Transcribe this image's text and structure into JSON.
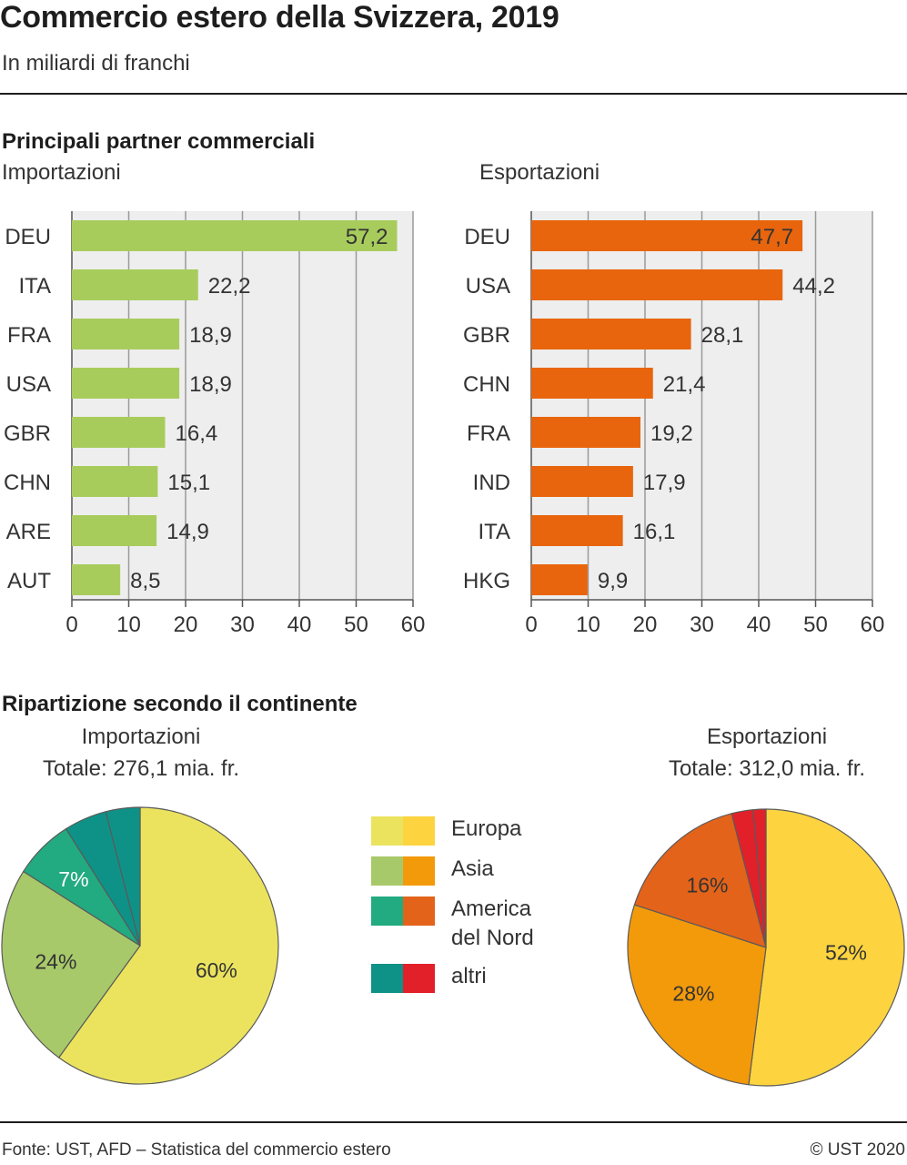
{
  "title": "Commercio estero della Svizzera, 2019",
  "subtitle": "In miliardi di franchi",
  "section1_title": "Principali partner commerciali",
  "section2_title": "Ripartizione secondo il continente",
  "footer": {
    "source": "Fonte: UST, AFD – Statistica del commercio estero",
    "copyright": "© UST 2020"
  },
  "legend": [
    {
      "label": "Europa",
      "colors": [
        "#ebe35e",
        "#fdd43f"
      ]
    },
    {
      "label": "Asia",
      "colors": [
        "#a8c96a",
        "#f39a0b"
      ]
    },
    {
      "label": "America\ndel Nord",
      "colors": [
        "#22aa80",
        "#e3631a"
      ]
    },
    {
      "label": "altri",
      "colors": [
        "#0e9287",
        "#e2202a"
      ]
    }
  ],
  "chart_data": [
    {
      "type": "bar",
      "orientation": "horizontal",
      "title": "Importazioni",
      "categories": [
        "DEU",
        "ITA",
        "FRA",
        "USA",
        "GBR",
        "CHN",
        "ARE",
        "AUT"
      ],
      "values": [
        57.2,
        22.2,
        18.9,
        18.9,
        16.4,
        15.1,
        14.9,
        8.5
      ],
      "value_labels": [
        "57,2",
        "22,2",
        "18,9",
        "18,9",
        "16,4",
        "15,1",
        "14,9",
        "8,5"
      ],
      "xlim": [
        0,
        60
      ],
      "xticks": [
        0,
        10,
        20,
        30,
        40,
        50,
        60
      ],
      "grid": true,
      "color": "#a8cc5c"
    },
    {
      "type": "bar",
      "orientation": "horizontal",
      "title": "Esportazioni",
      "categories": [
        "DEU",
        "USA",
        "GBR",
        "CHN",
        "FRA",
        "IND",
        "ITA",
        "HKG"
      ],
      "values": [
        47.7,
        44.2,
        28.1,
        21.4,
        19.2,
        17.9,
        16.1,
        9.9
      ],
      "value_labels": [
        "47,7",
        "44,2",
        "28,1",
        "21,4",
        "19,2",
        "17,9",
        "16,1",
        "9,9"
      ],
      "xlim": [
        0,
        60
      ],
      "xticks": [
        0,
        10,
        20,
        30,
        40,
        50,
        60
      ],
      "grid": true,
      "color": "#e8650d"
    },
    {
      "type": "pie",
      "title": "Importazioni",
      "subtitle": "Totale: 276,1 mia. fr.",
      "slices": [
        {
          "label": "Europa",
          "value": 60,
          "text": "60%",
          "color": "#ebe35e"
        },
        {
          "label": "Asia",
          "value": 24,
          "text": "24%",
          "color": "#a8c96a"
        },
        {
          "label": "America del Nord",
          "value": 7,
          "text": "7%",
          "color": "#22aa80"
        },
        {
          "label": "altri",
          "value": 5,
          "text": "",
          "color": "#0e9287"
        },
        {
          "label": "altri",
          "value": 4,
          "text": "",
          "color": "#0e9287"
        }
      ]
    },
    {
      "type": "pie",
      "title": "Esportazioni",
      "subtitle": "Totale: 312,0 mia. fr.",
      "slices": [
        {
          "label": "Europa",
          "value": 52,
          "text": "52%",
          "color": "#fdd43f"
        },
        {
          "label": "Asia",
          "value": 28,
          "text": "28%",
          "color": "#f39a0b"
        },
        {
          "label": "America del Nord",
          "value": 16,
          "text": "16%",
          "color": "#e3631a"
        },
        {
          "label": "altri",
          "value": 2.5,
          "text": "",
          "color": "#e2202a"
        },
        {
          "label": "altri",
          "value": 1.5,
          "text": "",
          "color": "#e2202a"
        }
      ]
    }
  ]
}
